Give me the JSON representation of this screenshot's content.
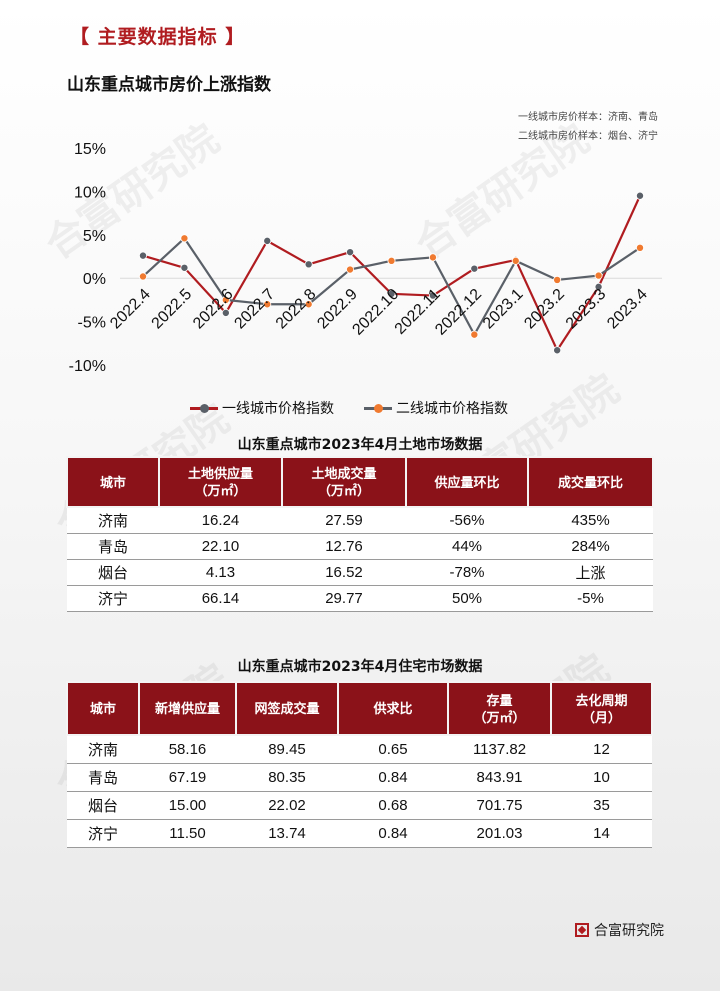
{
  "section_title": "【 主要数据指标 】",
  "chart_title": "山东重点城市房价上涨指数",
  "notes": [
    "一线城市房价样本：济南、青岛",
    "二线城市房价样本：烟台、济宁"
  ],
  "watermark": "合富研究院",
  "colors": {
    "series1": "#b01c20",
    "series2": "#5a6068",
    "series2_marker": "#f07a30",
    "header": "#8b1219"
  },
  "chart_data": {
    "type": "line",
    "title": "山东重点城市房价上涨指数",
    "categories": [
      "2022.4",
      "2022.5",
      "2022.6",
      "2022.7",
      "2022.8",
      "2022.9",
      "2022.10",
      "2022.11",
      "2022.12",
      "2023.1",
      "2023.2",
      "2023.3",
      "2023.4"
    ],
    "y_ticks": [
      "15%",
      "10%",
      "5%",
      "0%",
      "-5%",
      "-10%"
    ],
    "ylim": [
      -10,
      15
    ],
    "series": [
      {
        "name": "一线城市价格指数",
        "values": [
          2.6,
          1.2,
          -4.0,
          4.3,
          1.6,
          3.0,
          -1.8,
          -2.0,
          1.1,
          2.1,
          -8.3,
          -1.0,
          9.5
        ]
      },
      {
        "name": "二线城市价格指数",
        "values": [
          0.2,
          4.6,
          -2.5,
          -3.0,
          -3.0,
          1.0,
          2.0,
          2.4,
          -6.5,
          2.0,
          -0.2,
          0.3,
          3.5
        ]
      }
    ]
  },
  "land_table": {
    "title": "山东重点城市2023年4月土地市场数据",
    "headers": [
      "城市",
      "土地供应量\n（万㎡）",
      "土地成交量\n（万㎡）",
      "供应量环比",
      "成交量环比"
    ],
    "rows": [
      [
        "济南",
        "16.24",
        "27.59",
        "-56%",
        "435%"
      ],
      [
        "青岛",
        "22.10",
        "12.76",
        "44%",
        "284%"
      ],
      [
        "烟台",
        "4.13",
        "16.52",
        "-78%",
        "上涨"
      ],
      [
        "济宁",
        "66.14",
        "29.77",
        "50%",
        "-5%"
      ]
    ]
  },
  "housing_table": {
    "title": "山东重点城市2023年4月住宅市场数据",
    "headers": [
      "城市",
      "新增供应量",
      "网签成交量",
      "供求比",
      "存量\n（万㎡）",
      "去化周期\n（月）"
    ],
    "rows": [
      [
        "济南",
        "58.16",
        "89.45",
        "0.65",
        "1137.82",
        "12"
      ],
      [
        "青岛",
        "67.19",
        "80.35",
        "0.84",
        "843.91",
        "10"
      ],
      [
        "烟台",
        "15.00",
        "22.02",
        "0.68",
        "701.75",
        "35"
      ],
      [
        "济宁",
        "11.50",
        "13.74",
        "0.84",
        "201.03",
        "14"
      ]
    ]
  },
  "brand": "合富研究院"
}
